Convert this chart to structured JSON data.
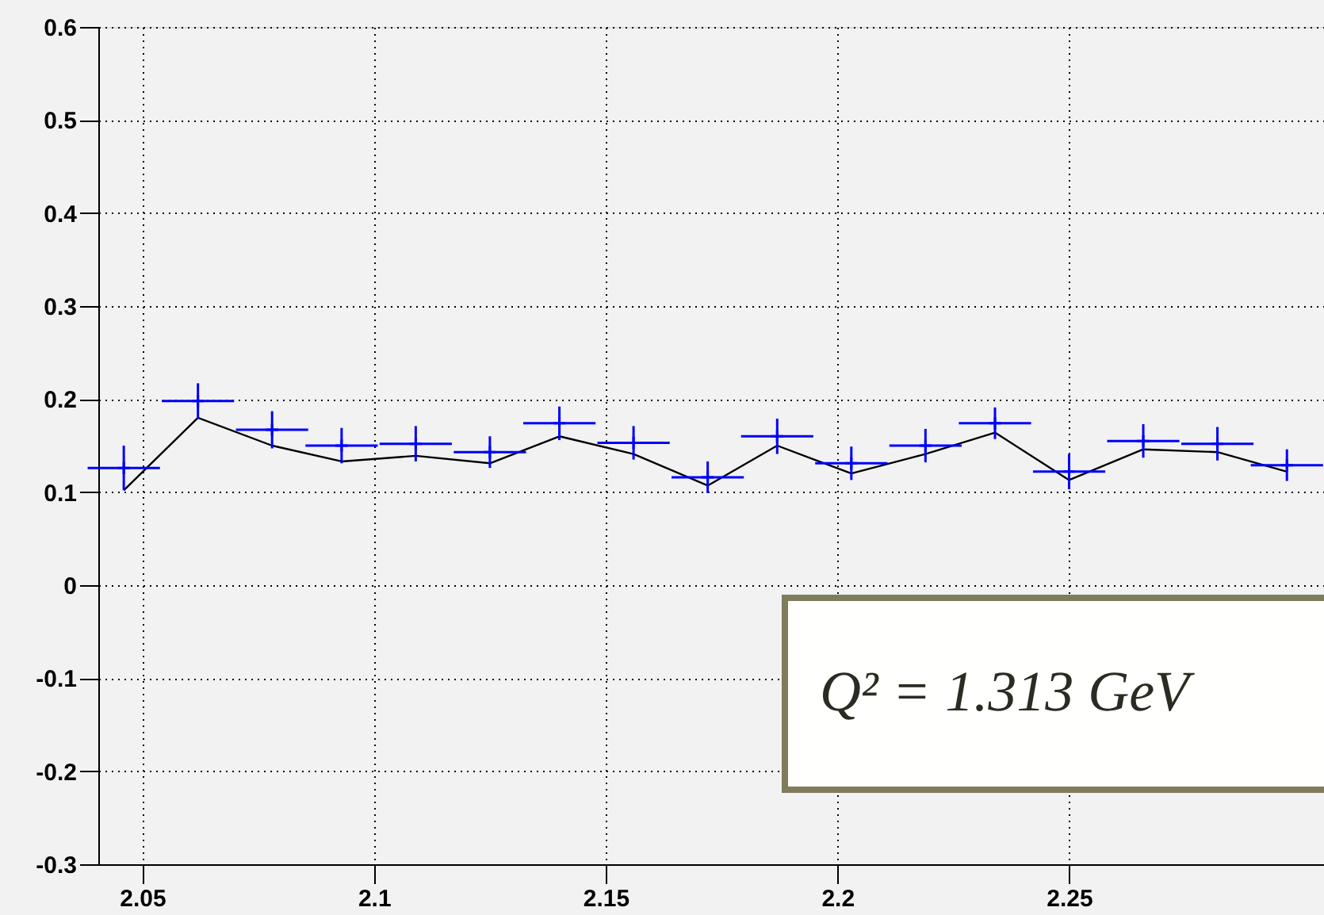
{
  "chart_data": {
    "type": "scatter",
    "x": [
      2.046,
      2.062,
      2.078,
      2.093,
      2.109,
      2.125,
      2.14,
      2.156,
      2.172,
      2.187,
      2.203,
      2.219,
      2.234,
      2.25,
      2.266,
      2.282,
      2.297
    ],
    "series": [
      {
        "color": "#0000ff",
        "marker": "cross",
        "values": [
          0.126,
          0.198,
          0.167,
          0.15,
          0.152,
          0.143,
          0.174,
          0.153,
          0.116,
          0.16,
          0.131,
          0.15,
          0.174,
          0.122,
          0.155,
          0.152,
          0.129
        ],
        "errors": [
          0.024,
          0.019,
          0.02,
          0.019,
          0.019,
          0.017,
          0.018,
          0.018,
          0.017,
          0.019,
          0.018,
          0.018,
          0.017,
          0.019,
          0.018,
          0.018,
          0.017
        ],
        "xerrors": [
          0.0078,
          0.0078,
          0.0078,
          0.0078,
          0.0078,
          0.0078,
          0.0078,
          0.0078,
          0.0078,
          0.0078,
          0.0078,
          0.0078,
          0.0078,
          0.0078,
          0.0078,
          0.0078,
          0.0078
        ]
      },
      {
        "type": "line",
        "color": "#000000",
        "marker": "none",
        "line_style": "solid",
        "values": [
          0.102,
          0.18,
          0.15,
          0.133,
          0.139,
          0.131,
          0.16,
          0.141,
          0.107,
          0.15,
          0.12,
          0.141,
          0.164,
          0.113,
          0.146,
          0.143,
          0.122
        ]
      }
    ],
    "xlim": [
      2.0405,
      2.305
    ],
    "xticks": [
      2.05,
      2.1,
      2.15,
      2.2,
      2.25
    ],
    "ylim": [
      -0.3,
      0.6
    ],
    "yticks": [
      -0.3,
      -0.2,
      -0.1,
      0,
      0.1,
      0.2,
      0.3,
      0.4,
      0.5,
      0.6
    ],
    "grid": true,
    "annotations": [
      "Q² = 1.313 GeV"
    ]
  }
}
